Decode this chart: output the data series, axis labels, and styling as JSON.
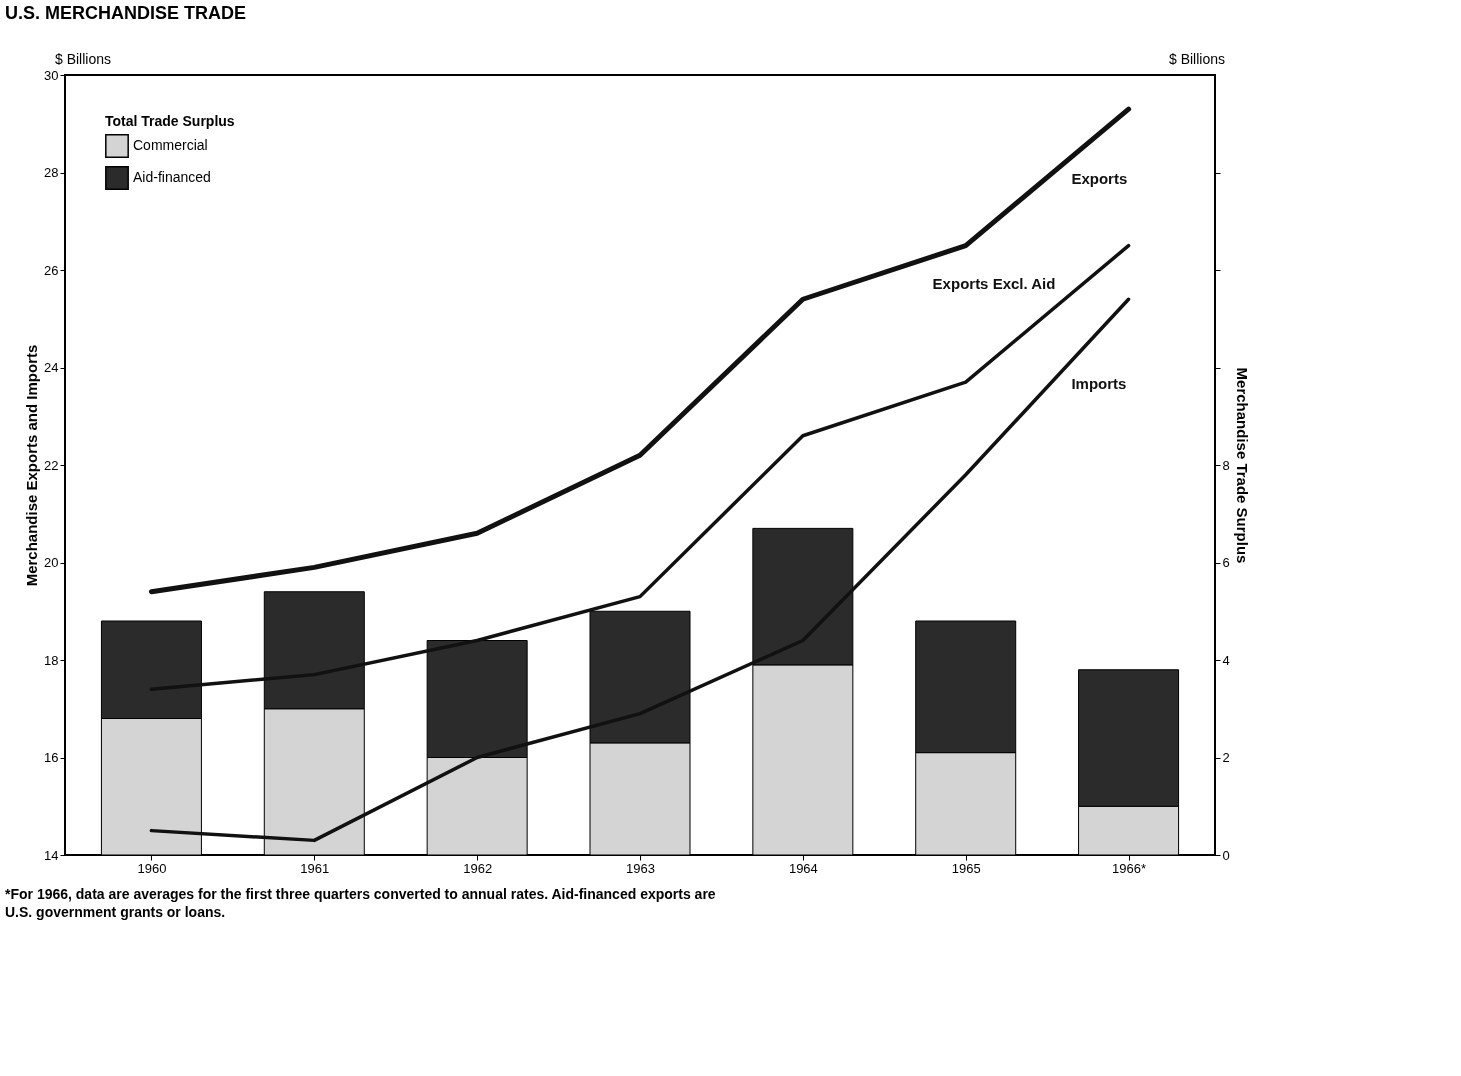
{
  "chart_data": {
    "type": "bar",
    "title": "U.S. MERCHANDISE TRADE",
    "ylabel": "Merchandise Exports and Imports",
    "y2label": "Merchandise Trade Surplus",
    "legend_title": "Total Trade Surplus",
    "legend": "top left",
    "stacked": true,
    "grid": false,
    "line_style": "solid",
    "categories": [
      "1960",
      "1961",
      "1962",
      "1963",
      "1964",
      "1965",
      "1966*"
    ],
    "ylim": [
      14,
      30
    ],
    "yticks": [
      14,
      16,
      18,
      20,
      22,
      24,
      26,
      28,
      30
    ],
    "y2lim": [
      0,
      16
    ],
    "y2ticks": [
      0,
      2,
      4,
      6,
      8,
      {
        "value": 10,
        "label": null
      },
      {
        "value": 12,
        "label": null
      },
      {
        "value": 14,
        "label": null
      }
    ],
    "annotations": [
      "$ Billions",
      "$ Billions",
      "*For 1966, data are averages for the first three quarters converted to annual rates. Aid-financed exports are",
      "U.S. government grants or loans."
    ],
    "series": [
      {
        "name": "Commercial",
        "axis": "y2",
        "color": "#d4d4d4",
        "values": [
          2.8,
          3.0,
          2.0,
          2.3,
          3.9,
          2.1,
          1.0
        ]
      },
      {
        "name": "Aid-financed",
        "axis": "y2",
        "color": "#2b2b2b",
        "values": [
          2.0,
          2.4,
          2.4,
          2.7,
          2.8,
          2.7,
          2.8
        ]
      },
      {
        "name": "Exports",
        "type": "line",
        "axis": "y",
        "color": "#111111",
        "values": [
          19.4,
          19.9,
          20.6,
          22.2,
          25.4,
          26.5,
          29.3
        ]
      },
      {
        "name": "Exports Excl. Aid",
        "type": "line",
        "axis": "y",
        "color": "#111111",
        "values": [
          17.4,
          17.7,
          18.4,
          19.3,
          22.6,
          23.7,
          26.5
        ]
      },
      {
        "name": "Imports",
        "type": "line",
        "axis": "y",
        "color": "#111111",
        "values": [
          14.5,
          14.3,
          16.0,
          16.9,
          18.4,
          21.8,
          25.4
        ]
      }
    ]
  }
}
